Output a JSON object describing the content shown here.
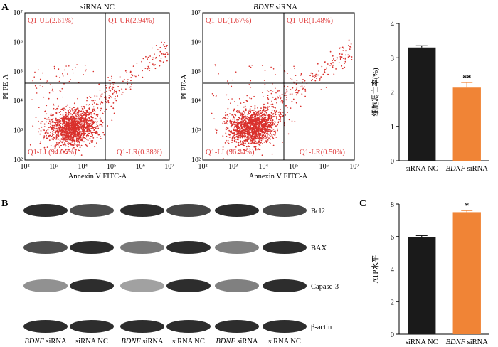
{
  "panel_letters": {
    "a": "A",
    "b": "B",
    "c": "C"
  },
  "flow": [
    {
      "title": "siRNA NC",
      "title_italic": false,
      "xlabel": "Annexin V FITC-A",
      "ylabel": "PI PE-A",
      "ticks": [
        "10²",
        "10³",
        "10⁴",
        "10⁵",
        "10⁶",
        "10⁷"
      ],
      "quadrants": {
        "ul": "Q1-UL(2.61%)",
        "ur": "Q1-UR(2.94%)",
        "ll": "Q1-LL(94.06%)",
        "lr": "Q1-LR(0.38%)"
      }
    },
    {
      "title": "siRNA",
      "title_prefix": "BDNF",
      "title_italic": true,
      "xlabel": "Annexin V FITC-A",
      "ylabel": "PI PE-A",
      "ticks": [
        "10²",
        "10³",
        "10⁴",
        "10⁵",
        "10⁶",
        "10⁷"
      ],
      "quadrants": {
        "ul": "Q1-UL(1.67%)",
        "ur": "Q1-UR(1.48%)",
        "ll": "Q1-LL(96.34%)",
        "lr": "Q1-LR(0.50%)"
      }
    }
  ],
  "chart_data": [
    {
      "type": "bar",
      "categories": [
        "siRNA NC",
        "BDNF siRNA"
      ],
      "values": [
        3.3,
        2.13
      ],
      "errors": [
        0.05,
        0.15
      ],
      "significance": [
        "",
        "**"
      ],
      "colors": [
        "#1a1a1a",
        "#f08436"
      ],
      "ylabel": "细胞凋亡率(%)",
      "ylim": [
        0,
        4
      ],
      "yticks": [
        "0",
        "1",
        "2",
        "3",
        "4"
      ]
    },
    {
      "type": "bar",
      "categories": [
        "siRNA NC",
        "BDNF siRNA"
      ],
      "values": [
        5.98,
        7.5
      ],
      "errors": [
        0.08,
        0.1
      ],
      "significance": [
        "",
        "*"
      ],
      "colors": [
        "#1a1a1a",
        "#f08436"
      ],
      "ylabel": "ATP水平",
      "ylim": [
        0,
        8
      ],
      "yticks": [
        "0",
        "2",
        "4",
        "6",
        "8"
      ]
    }
  ],
  "western": {
    "rows": [
      "Bcl2",
      "BAX",
      "Capase-3",
      "β-actin"
    ],
    "lanes": [
      "BDNF siRNA",
      "siRNA NC",
      "BDNF siRNA",
      "siRNA NC",
      "BDNF siRNA",
      "siRNA NC"
    ],
    "lane_italic_prefix": "BDNF",
    "intensity": [
      [
        0.95,
        0.75,
        0.95,
        0.8,
        0.95,
        0.8
      ],
      [
        0.75,
        0.95,
        0.5,
        0.95,
        0.45,
        0.95
      ],
      [
        0.35,
        0.95,
        0.25,
        0.95,
        0.45,
        0.95
      ],
      [
        0.95,
        0.95,
        0.95,
        0.95,
        0.95,
        0.95
      ]
    ]
  }
}
